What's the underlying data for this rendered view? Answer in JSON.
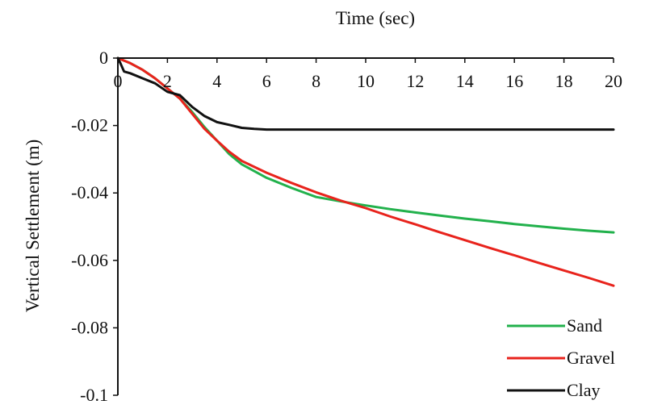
{
  "chart_data": {
    "type": "line",
    "title": "",
    "xlabel": "Time (sec)",
    "ylabel": "Vertical Settlement (m)",
    "xlim": [
      0,
      20
    ],
    "ylim": [
      -0.1,
      0
    ],
    "x_ticks": [
      0,
      2,
      4,
      6,
      8,
      10,
      12,
      14,
      16,
      18,
      20
    ],
    "x_tick_labels": [
      "0",
      "2",
      "4",
      "6",
      "8",
      "10",
      "12",
      "14",
      "16",
      "18",
      "20"
    ],
    "y_ticks": [
      0,
      -0.02,
      -0.04,
      -0.06,
      -0.08,
      -0.1
    ],
    "y_tick_labels": [
      "0",
      "-0.02",
      "-0.04",
      "-0.06",
      "-0.08",
      "-0.1"
    ],
    "x_axis_position": "top",
    "grid": false,
    "legend_position": "bottom-right",
    "series": [
      {
        "name": "Sand",
        "color": "#22b14c",
        "x": [
          0,
          0.5,
          1,
          1.5,
          2,
          2.5,
          3,
          3.5,
          4,
          4.5,
          5,
          6,
          7,
          8,
          9,
          10,
          11,
          12,
          13,
          14,
          15,
          16,
          17,
          18,
          19,
          20
        ],
        "y": [
          0,
          -0.0015,
          -0.0035,
          -0.006,
          -0.009,
          -0.012,
          -0.016,
          -0.0205,
          -0.0245,
          -0.0285,
          -0.0315,
          -0.0355,
          -0.0385,
          -0.0412,
          -0.0425,
          -0.0437,
          -0.0448,
          -0.0458,
          -0.0467,
          -0.0476,
          -0.0484,
          -0.0492,
          -0.0499,
          -0.0506,
          -0.0512,
          -0.0517
        ]
      },
      {
        "name": "Gravel",
        "color": "#e8231c",
        "x": [
          0,
          0.5,
          1,
          1.5,
          2,
          2.5,
          3,
          3.5,
          4,
          4.5,
          5,
          6,
          7,
          8,
          9,
          10,
          11,
          12,
          13,
          14,
          15,
          16,
          17,
          18,
          19,
          20
        ],
        "y": [
          0,
          -0.0015,
          -0.0035,
          -0.006,
          -0.009,
          -0.012,
          -0.0165,
          -0.021,
          -0.0245,
          -0.0278,
          -0.0305,
          -0.034,
          -0.037,
          -0.0398,
          -0.0423,
          -0.0445,
          -0.047,
          -0.0493,
          -0.0517,
          -0.054,
          -0.0563,
          -0.0585,
          -0.0608,
          -0.063,
          -0.0652,
          -0.0675
        ]
      },
      {
        "name": "Clay",
        "color": "#111111",
        "x": [
          0,
          0.1,
          0.25,
          0.5,
          1,
          1.5,
          2,
          2.5,
          3,
          3.5,
          4,
          4.5,
          5,
          5.5,
          6,
          7,
          8,
          10,
          12,
          14,
          16,
          18,
          20
        ],
        "y": [
          0,
          -0.0015,
          -0.004,
          -0.0045,
          -0.006,
          -0.0075,
          -0.01,
          -0.011,
          -0.0145,
          -0.0172,
          -0.019,
          -0.0198,
          -0.0207,
          -0.021,
          -0.0212,
          -0.0212,
          -0.0212,
          -0.0212,
          -0.0212,
          -0.0212,
          -0.0212,
          -0.0212,
          -0.0212
        ]
      }
    ]
  }
}
